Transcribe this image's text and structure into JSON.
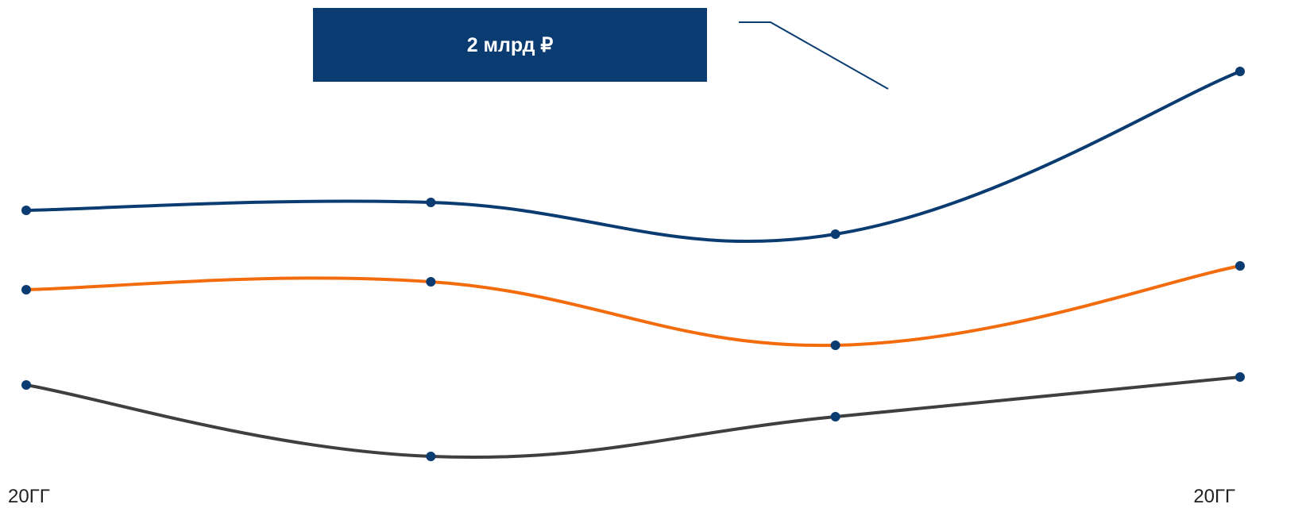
{
  "chart_data": {
    "type": "line",
    "x_ticks_labeled": [
      "20ГГ",
      "20ГГ"
    ],
    "x": [
      1,
      2,
      3,
      4
    ],
    "series": [
      {
        "values": [
          3.35,
          3.45,
          3.05,
          5.1
        ],
        "color": "#0b3c71"
      },
      {
        "values": [
          2.35,
          2.45,
          1.65,
          2.65
        ],
        "color": "#f26c0d"
      },
      {
        "values": [
          1.15,
          0.25,
          0.75,
          1.25
        ],
        "color": "#3f3f3f"
      }
    ],
    "marker_color": "#0b3c71",
    "ylim": [
      0,
      6
    ],
    "grid": false,
    "annotation": {
      "text": "2 млрд ₽",
      "box_color": "#0b3c71",
      "points_to": {
        "series": 0,
        "between": [
          3,
          4
        ]
      }
    }
  }
}
